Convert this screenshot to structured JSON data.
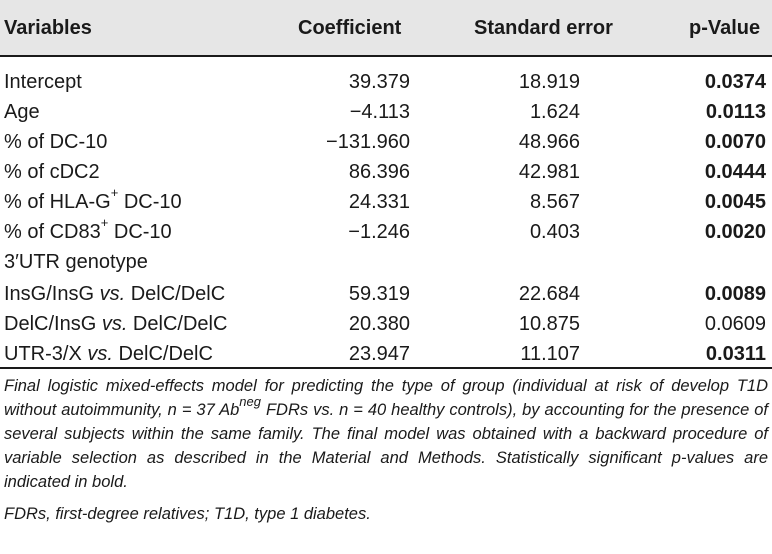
{
  "header": {
    "variables": "Variables",
    "coefficient": "Coefficient",
    "standard_error": "Standard error",
    "p_value": "p-Value"
  },
  "rows": [
    {
      "label": "Intercept",
      "coef": "39.379",
      "se": "18.919",
      "p": "0.0374",
      "bold": true
    },
    {
      "label": "Age",
      "coef": "−4.113",
      "se": "1.624",
      "p": "0.0113",
      "bold": true
    },
    {
      "label": "% of DC-10",
      "coef": "−131.960",
      "se": "48.966",
      "p": "0.0070",
      "bold": true
    },
    {
      "label": "% of cDC2",
      "coef": "86.396",
      "se": "42.981",
      "p": "0.0444",
      "bold": true
    },
    {
      "label_pre": "% of HLA-G",
      "label_sup": "+",
      "label_post": " DC-10",
      "coef": "24.331",
      "se": "8.567",
      "p": "0.0045",
      "bold": true
    },
    {
      "label_pre": "% of CD83",
      "label_sup": "+",
      "label_post": " DC-10",
      "coef": "−1.246",
      "se": "0.403",
      "p": "0.0020",
      "bold": true
    },
    {
      "label": "3′UTR genotype"
    },
    {
      "label_pre": "InsG/InsG ",
      "label_it": "vs.",
      "label_post": " DelC/DelC",
      "coef": "59.319",
      "se": "22.684",
      "p": "0.0089",
      "bold": true
    },
    {
      "label_pre": "DelC/InsG ",
      "label_it": "vs.",
      "label_post": " DelC/DelC",
      "coef": "20.380",
      "se": "10.875",
      "p": "0.0609",
      "bold": false
    },
    {
      "label_pre": "UTR-3/X ",
      "label_it": "vs.",
      "label_post": " DelC/DelC",
      "coef": "23.947",
      "se": "11.107",
      "p": "0.0311",
      "bold": true
    }
  ],
  "footnote": {
    "part1": "Final logistic mixed-effects model for predicting the type of group (individual at risk of develop T1D without autoimmunity, n = 37 Ab",
    "sup": "neg",
    "part2": " FDRs vs. n = 40 healthy controls), by accounting for the presence of several subjects within the same family. The final model was obtained with a backward procedure of variable selection as described in the Material and Methods. Statistically significant p-values are indicated in bold.",
    "abbreviations": "FDRs, first-degree relatives; T1D, type 1 diabetes."
  }
}
